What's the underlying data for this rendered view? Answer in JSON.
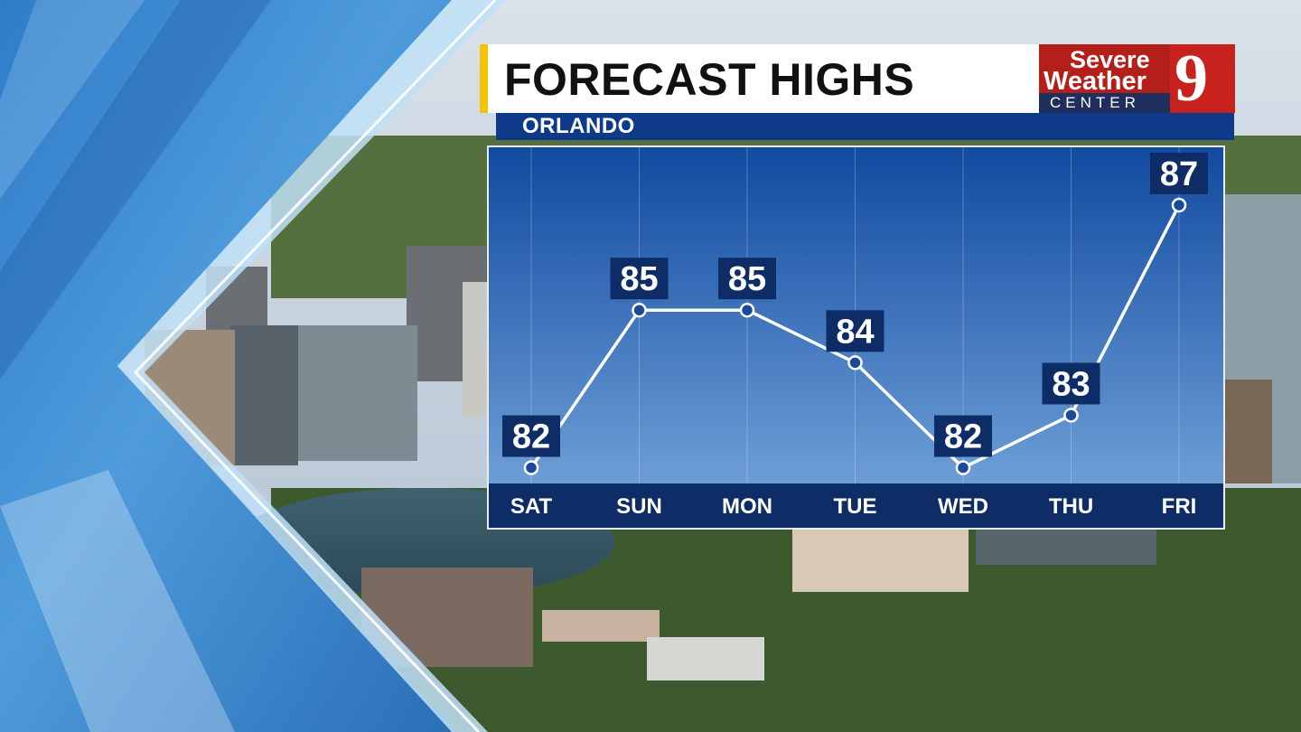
{
  "header": {
    "title": "FORECAST HIGHS",
    "location": "ORLANDO"
  },
  "logo": {
    "line1": "Severe",
    "line2": "Weather",
    "line3": "CENTER",
    "number": "9"
  },
  "colors": {
    "title_accent": "#f2c500",
    "brand_red": "#b51f1a",
    "brand_navy": "#0f3a8a",
    "plot_top": "#114aa0",
    "plot_bottom": "#6d9ed6"
  },
  "chart_data": {
    "type": "line",
    "title": "FORECAST HIGHS",
    "subtitle": "ORLANDO",
    "categories": [
      "SAT",
      "SUN",
      "MON",
      "TUE",
      "WED",
      "THU",
      "FRI"
    ],
    "series": [
      {
        "values": [
          82,
          85,
          85,
          84,
          82,
          83,
          87
        ]
      }
    ],
    "ylim": [
      81.7,
      88.1
    ],
    "grid": true,
    "legend": "none",
    "data_labels": [
      "82",
      "85",
      "85",
      "84",
      "82",
      "83",
      "87"
    ]
  }
}
